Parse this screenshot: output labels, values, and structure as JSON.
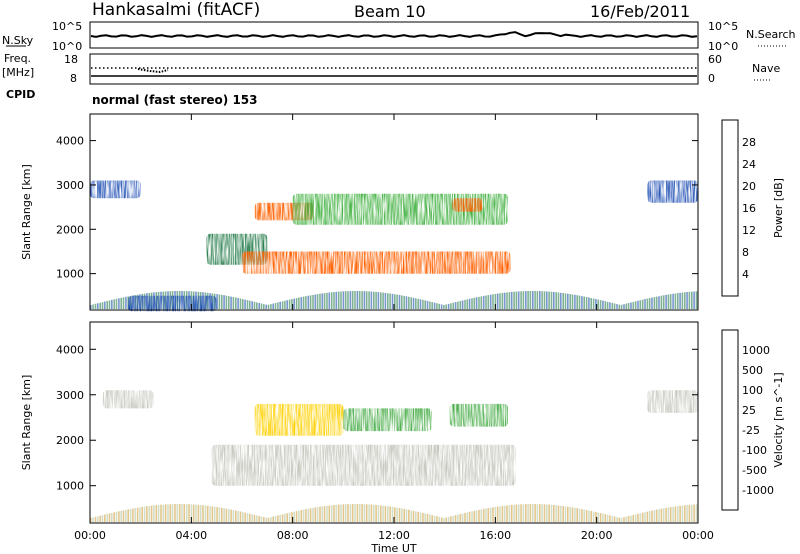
{
  "header": {
    "station": "Hankasalmi (fitACF)",
    "beam": "Beam 10",
    "date": "16/Feb/2011"
  },
  "top_panels": {
    "nsky_label": "N.Sky",
    "nsearch_label": "N.Search",
    "log_ticks_left": [
      "10^5",
      "10^0"
    ],
    "log_ticks_right": [
      "10^5",
      "10^0"
    ],
    "freq_label": "Freq.",
    "freq_unit": "[MHz]",
    "freq_ticks": [
      "18",
      "8"
    ],
    "nave_label": "Nave",
    "nave_ticks": [
      "60",
      "0"
    ],
    "cpid_label": "CPID",
    "cpid_value": "normal (fast stereo) 153"
  },
  "chart_data": [
    {
      "type": "heatmap",
      "name": "Power",
      "ylabel": "Slant Range [km]",
      "ylim": [
        180,
        4600
      ],
      "yticks": [
        "4000",
        "3000",
        "2000",
        "1000"
      ],
      "x": [
        "00:00",
        "04:00",
        "08:00",
        "12:00",
        "16:00",
        "20:00",
        "00:00"
      ],
      "colorbar_label": "Power [dB]",
      "colorbar_ticks": [
        "28",
        "24",
        "20",
        "16",
        "12",
        "8",
        "4"
      ],
      "colorbar_colors": [
        "#0000ff",
        "#1f4fb4",
        "#2a7f4f",
        "#40b040",
        "#ffd000",
        "#ffa000",
        "#ff6000",
        "#ff0000"
      ],
      "colorbar_range": [
        0,
        32
      ],
      "features": [
        {
          "t0": 1.5,
          "t1": 5.0,
          "r0": 150,
          "r1": 500,
          "value": 6
        },
        {
          "t0": 4.6,
          "t1": 7.0,
          "r0": 1200,
          "r1": 1900,
          "value": 10
        },
        {
          "t0": 6.0,
          "t1": 16.6,
          "r0": 1000,
          "r1": 1500,
          "value": 24
        },
        {
          "t0": 6.5,
          "t1": 8.8,
          "r0": 2200,
          "r1": 2600,
          "value": 26
        },
        {
          "t0": 8.0,
          "t1": 16.5,
          "r0": 2100,
          "r1": 2800,
          "value": 14
        },
        {
          "t0": 14.3,
          "t1": 15.5,
          "r0": 2400,
          "r1": 2700,
          "value": 24
        },
        {
          "t0": 0.0,
          "t1": 2.0,
          "r0": 2700,
          "r1": 3100,
          "value": 5
        },
        {
          "t0": 22.0,
          "t1": 24.0,
          "r0": 2600,
          "r1": 3100,
          "value": 5
        }
      ]
    },
    {
      "type": "heatmap",
      "name": "Velocity",
      "ylabel": "Slant Range [km]",
      "ylim": [
        180,
        4600
      ],
      "yticks": [
        "4000",
        "3000",
        "2000",
        "1000"
      ],
      "x": [
        "00:00",
        "04:00",
        "08:00",
        "12:00",
        "16:00",
        "20:00",
        "00:00"
      ],
      "xlabel": "Time UT",
      "colorbar_label": "Velocity [m s^-1]",
      "colorbar_ticks": [
        "1000",
        "500",
        "100",
        "25",
        "-25",
        "-100",
        "-500",
        "-1000"
      ],
      "colorbar_colors": [
        "#ff0000",
        "#ff6000",
        "#ffa000",
        "#ffd000",
        "#c8c8c0",
        "#50b050",
        "#2a7f4f",
        "#1f4fb4",
        "#0000ff"
      ],
      "colorbar_range": [
        -1200,
        1200
      ],
      "features": [
        {
          "t0": 4.8,
          "t1": 16.8,
          "r0": 1000,
          "r1": 1900,
          "value": 0
        },
        {
          "t0": 6.5,
          "t1": 10.0,
          "r0": 2100,
          "r1": 2800,
          "value": -300
        },
        {
          "t0": 10.0,
          "t1": 13.5,
          "r0": 2200,
          "r1": 2700,
          "value": 150
        },
        {
          "t0": 14.2,
          "t1": 16.5,
          "r0": 2300,
          "r1": 2800,
          "value": 300
        },
        {
          "t0": 0.5,
          "t1": 2.5,
          "r0": 2700,
          "r1": 3100,
          "value": 0
        },
        {
          "t0": 22.0,
          "t1": 24.0,
          "r0": 2600,
          "r1": 3100,
          "value": 0
        }
      ]
    }
  ]
}
